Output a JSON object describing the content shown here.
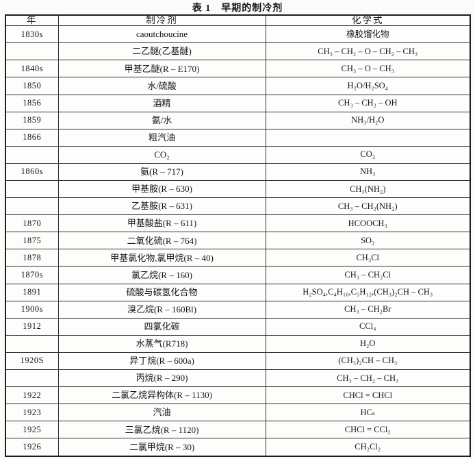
{
  "title": "表 1　早期的制冷剂",
  "table": {
    "headers": {
      "year": "年",
      "refrigerant": "制冷剂",
      "formula": "化学式"
    },
    "rows": [
      {
        "year": "1830s",
        "refrigerant": "caoutchoucine",
        "formula": "橡胶馏化物"
      },
      {
        "year": "",
        "refrigerant": "二乙醚(乙基醚)",
        "formula": "CH₃ – CH₂ – O – CH₂ – CH₃"
      },
      {
        "year": "1840s",
        "refrigerant": "甲基乙醚(R – E170)",
        "formula": "CH₃ – O – CH₃"
      },
      {
        "year": "1850",
        "refrigerant": "水/硫酸",
        "formula": "H₂O/H₂SO₄"
      },
      {
        "year": "1856",
        "refrigerant": "酒精",
        "formula": "CH₃ – CH₂ – OH"
      },
      {
        "year": "1859",
        "refrigerant": "氨/水",
        "formula": "NH₃/H₂O"
      },
      {
        "year": "1866",
        "refrigerant": "粗汽油",
        "formula": ""
      },
      {
        "year": "",
        "refrigerant": "CO₂",
        "formula": "CO₂"
      },
      {
        "year": "1860s",
        "refrigerant": "氨(R – 717)",
        "formula": "NH₃"
      },
      {
        "year": "",
        "refrigerant": "甲基胺(R – 630)",
        "formula": "CH₃(NH₂)"
      },
      {
        "year": "",
        "refrigerant": "乙基胺(R – 631)",
        "formula": "CH₃ – CH₂(NH₂)"
      },
      {
        "year": "1870",
        "refrigerant": "甲基酸盐(R – 611)",
        "formula": "HCOOCH₃"
      },
      {
        "year": "1875",
        "refrigerant": "二氧化硫(R – 764)",
        "formula": "SO₂"
      },
      {
        "year": "1878",
        "refrigerant": "甲基氯化物,氯甲烷(R – 40)",
        "formula": "CH₃Cl"
      },
      {
        "year": "1870s",
        "refrigerant": "氯乙烷(R – 160)",
        "formula": "CH₃ – CH₂Cl"
      },
      {
        "year": "1891",
        "refrigerant": "硫酸与碳氢化合物",
        "formula": "H₂SO₄,C₄H₁₀,C₅H₁₂,(CH₃)₂CH – CH₃"
      },
      {
        "year": "1900s",
        "refrigerant": "溴乙烷(R – 160Bl)",
        "formula": "CH₃ – CH₂Br"
      },
      {
        "year": "1912",
        "refrigerant": "四氯化碳",
        "formula": "CCl₄"
      },
      {
        "year": "",
        "refrigerant": "水蒸气(R718)",
        "formula": "H₂O"
      },
      {
        "year": "1920S",
        "refrigerant": "异丁烷(R – 600a)",
        "formula": "(CH₃)₂CH – CH₃"
      },
      {
        "year": "",
        "refrigerant": "丙烷(R – 290)",
        "formula": "CH₃ – CH₂ – CH₃"
      },
      {
        "year": "1922",
        "refrigerant": "二氯乙烷异构体(R – 1130)",
        "formula": "CHCl = CHCl"
      },
      {
        "year": "1923",
        "refrigerant": "汽油",
        "formula": "HCₛ"
      },
      {
        "year": "1925",
        "refrigerant": "三氯乙烷(R – 1120)",
        "formula": "CHCl = CCl₂"
      },
      {
        "year": "1926",
        "refrigerant": "二氯甲烷(R – 30)",
        "formula": "CH₂Cl₂"
      }
    ]
  }
}
